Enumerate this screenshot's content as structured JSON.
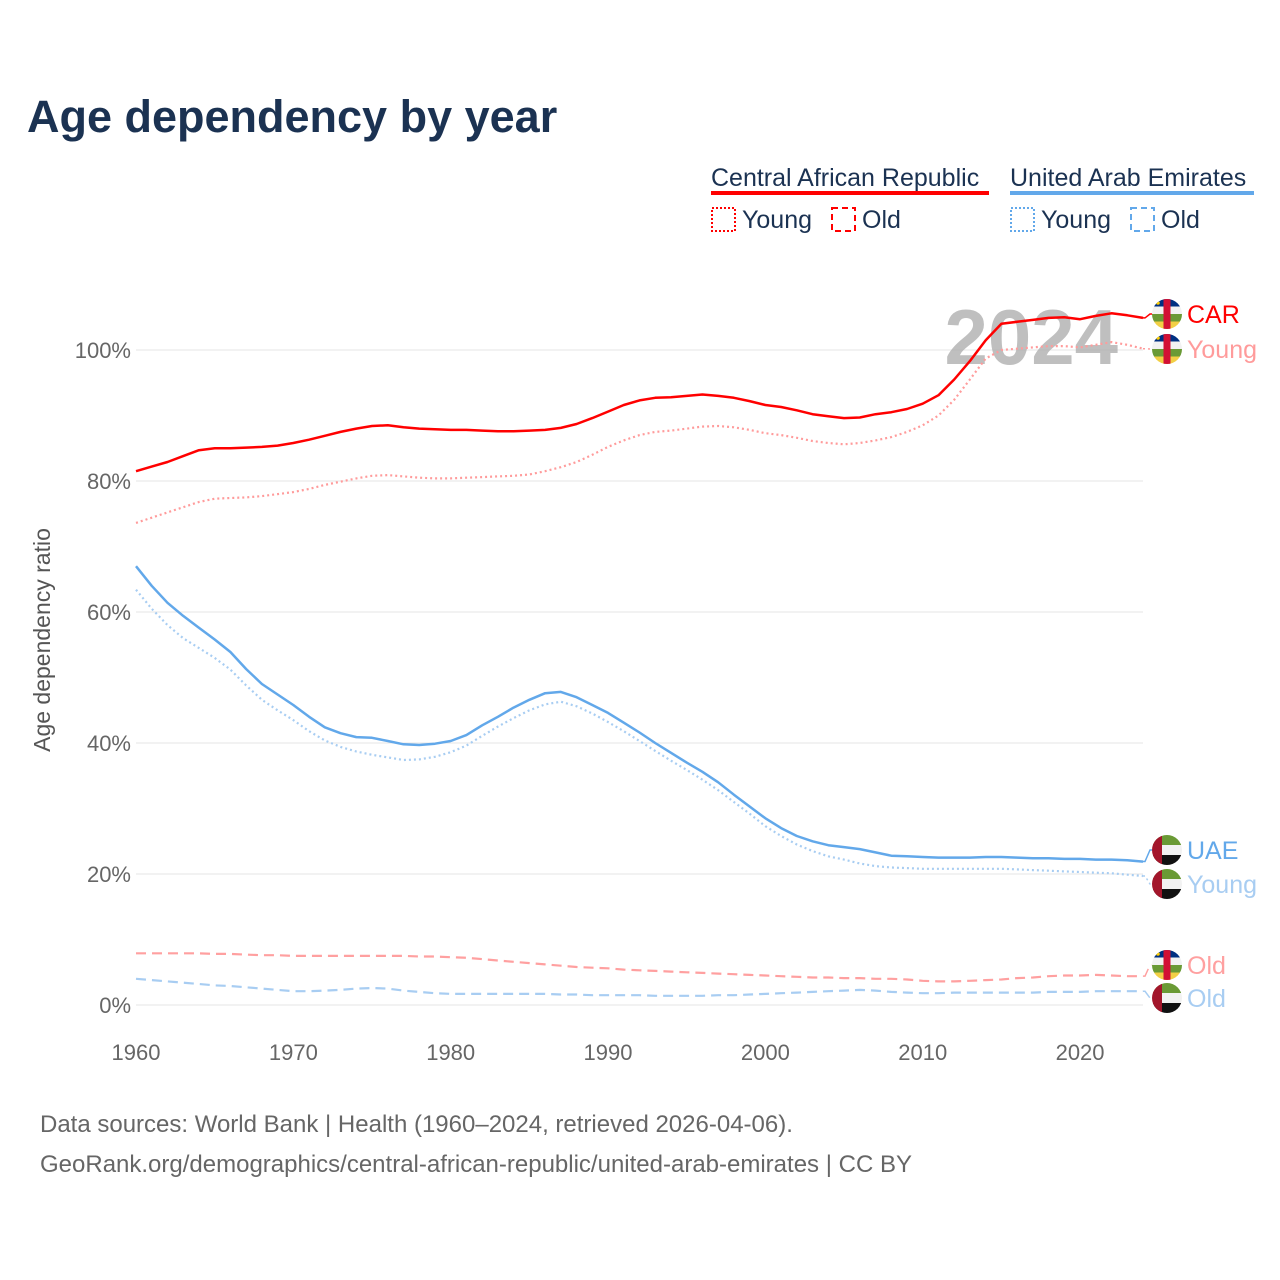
{
  "chart_data": {
    "type": "line",
    "title": "Age dependency by year",
    "xlabel": "",
    "ylabel": "Age dependency ratio",
    "xlim": [
      1960,
      2024
    ],
    "ylim": [
      0,
      110
    ],
    "x_ticks": [
      "1960",
      "1970",
      "1980",
      "1990",
      "2000",
      "2010",
      "2020"
    ],
    "y_ticks": [
      "0%",
      "20%",
      "40%",
      "60%",
      "80%",
      "100%"
    ],
    "grid": true,
    "watermark_year": "2024",
    "legend": {
      "placement": "top-right",
      "groups": [
        {
          "country": "Central African Republic",
          "items": [
            "Young",
            "Old"
          ]
        },
        {
          "country": "United Arab Emirates",
          "items": [
            "Young",
            "Old"
          ]
        }
      ]
    },
    "x_start": 1960,
    "series": [
      {
        "name": "Central African Republic",
        "label": "CAR",
        "kind": "total",
        "color": "#ff0000",
        "style": "solid",
        "values": [
          81.5,
          82.2,
          82.9,
          83.8,
          84.7,
          85.0,
          85.0,
          85.1,
          85.2,
          85.4,
          85.8,
          86.3,
          86.9,
          87.5,
          88.0,
          88.4,
          88.5,
          88.2,
          88.0,
          87.9,
          87.8,
          87.8,
          87.7,
          87.6,
          87.6,
          87.7,
          87.8,
          88.1,
          88.7,
          89.6,
          90.6,
          91.6,
          92.3,
          92.7,
          92.8,
          93.0,
          93.2,
          93.0,
          92.7,
          92.2,
          91.6,
          91.3,
          90.8,
          90.2,
          89.9,
          89.6,
          89.7,
          90.2,
          90.5,
          91.0,
          91.8,
          93.1,
          95.5,
          98.3,
          101.5,
          104.0,
          104.3,
          104.6,
          104.9,
          105.0,
          104.7,
          105.2,
          105.6,
          105.3,
          104.9
        ]
      },
      {
        "name": "Central African Republic Young",
        "label": "Young",
        "kind": "young",
        "color": "#ff9b9b",
        "style": "dotted",
        "values": [
          73.6,
          74.4,
          75.2,
          76.0,
          76.8,
          77.3,
          77.4,
          77.5,
          77.7,
          78.0,
          78.3,
          78.8,
          79.4,
          79.9,
          80.4,
          80.8,
          80.9,
          80.7,
          80.5,
          80.4,
          80.4,
          80.5,
          80.6,
          80.7,
          80.8,
          81.0,
          81.5,
          82.1,
          82.9,
          84.0,
          85.2,
          86.2,
          87.0,
          87.5,
          87.7,
          88.0,
          88.3,
          88.4,
          88.2,
          87.8,
          87.3,
          87.0,
          86.6,
          86.1,
          85.8,
          85.6,
          85.8,
          86.2,
          86.7,
          87.5,
          88.5,
          90.0,
          92.4,
          95.5,
          98.7,
          100.0,
          100.2,
          100.4,
          100.6,
          100.6,
          100.4,
          100.8,
          101.2,
          100.8,
          100.2
        ]
      },
      {
        "name": "Central African Republic Old",
        "label": "Old",
        "kind": "old",
        "color": "#ffa0a0",
        "style": "dashed",
        "values": [
          7.9,
          7.9,
          7.9,
          7.9,
          7.9,
          7.8,
          7.8,
          7.7,
          7.6,
          7.6,
          7.5,
          7.5,
          7.5,
          7.5,
          7.5,
          7.5,
          7.5,
          7.5,
          7.4,
          7.4,
          7.3,
          7.2,
          7.0,
          6.8,
          6.6,
          6.4,
          6.2,
          6.0,
          5.8,
          5.7,
          5.6,
          5.4,
          5.3,
          5.2,
          5.1,
          5.0,
          4.9,
          4.8,
          4.7,
          4.6,
          4.5,
          4.4,
          4.3,
          4.2,
          4.2,
          4.1,
          4.1,
          4.0,
          4.0,
          3.9,
          3.7,
          3.6,
          3.6,
          3.7,
          3.8,
          3.9,
          4.1,
          4.2,
          4.4,
          4.5,
          4.5,
          4.6,
          4.5,
          4.4,
          4.4
        ]
      },
      {
        "name": "United Arab Emirates",
        "label": "UAE",
        "kind": "total",
        "color": "#62a8ea",
        "style": "solid",
        "values": [
          67.0,
          64.0,
          61.4,
          59.4,
          57.6,
          55.8,
          53.9,
          51.3,
          49.0,
          47.4,
          45.8,
          44.0,
          42.4,
          41.5,
          40.9,
          40.8,
          40.3,
          39.8,
          39.7,
          39.9,
          40.3,
          41.2,
          42.7,
          44.0,
          45.4,
          46.6,
          47.6,
          47.8,
          47.0,
          45.8,
          44.6,
          43.1,
          41.6,
          40.0,
          38.5,
          37.0,
          35.6,
          34.0,
          32.1,
          30.3,
          28.5,
          27.0,
          25.8,
          25.0,
          24.4,
          24.1,
          23.8,
          23.3,
          22.8,
          22.7,
          22.6,
          22.5,
          22.5,
          22.5,
          22.6,
          22.6,
          22.5,
          22.4,
          22.4,
          22.3,
          22.3,
          22.2,
          22.2,
          22.1,
          21.9
        ]
      },
      {
        "name": "United Arab Emirates Young",
        "label": "Young",
        "kind": "young",
        "color": "#a8cdf2",
        "style": "dotted",
        "values": [
          63.4,
          60.5,
          58.0,
          56.0,
          54.5,
          53.0,
          51.2,
          48.8,
          46.6,
          45.0,
          43.5,
          41.8,
          40.4,
          39.4,
          38.7,
          38.2,
          37.8,
          37.4,
          37.5,
          37.9,
          38.6,
          39.6,
          41.1,
          42.5,
          43.8,
          45.0,
          45.9,
          46.3,
          45.6,
          44.5,
          43.2,
          41.8,
          40.3,
          38.8,
          37.3,
          35.9,
          34.4,
          32.8,
          31.0,
          29.2,
          27.3,
          25.8,
          24.5,
          23.5,
          22.7,
          22.2,
          21.6,
          21.2,
          21.0,
          20.9,
          20.8,
          20.8,
          20.8,
          20.8,
          20.8,
          20.8,
          20.7,
          20.6,
          20.5,
          20.4,
          20.3,
          20.2,
          20.1,
          19.9,
          19.7
        ]
      },
      {
        "name": "United Arab Emirates Old",
        "label": "Old",
        "kind": "old",
        "color": "#a8cdf2",
        "style": "dashed",
        "values": [
          4.0,
          3.8,
          3.6,
          3.4,
          3.2,
          3.0,
          2.9,
          2.7,
          2.5,
          2.3,
          2.1,
          2.1,
          2.2,
          2.3,
          2.5,
          2.6,
          2.5,
          2.2,
          2.0,
          1.8,
          1.7,
          1.7,
          1.7,
          1.7,
          1.7,
          1.7,
          1.7,
          1.6,
          1.6,
          1.5,
          1.5,
          1.5,
          1.5,
          1.4,
          1.4,
          1.4,
          1.4,
          1.5,
          1.5,
          1.6,
          1.7,
          1.8,
          1.9,
          2.0,
          2.1,
          2.2,
          2.3,
          2.2,
          2.0,
          1.9,
          1.8,
          1.8,
          1.9,
          1.9,
          1.9,
          1.9,
          1.9,
          1.9,
          2.0,
          2.0,
          2.0,
          2.1,
          2.1,
          2.1,
          2.1
        ]
      }
    ],
    "source_lines": [
      "Data sources: World Bank | Health (1960–2024, retrieved 2026-04-06).",
      "GeoRank.org/demographics/central-african-republic/united-arab-emirates | CC BY"
    ]
  },
  "colors": {
    "car": "#ff0000",
    "uae": "#62a8ea",
    "title": "#1b3252"
  }
}
